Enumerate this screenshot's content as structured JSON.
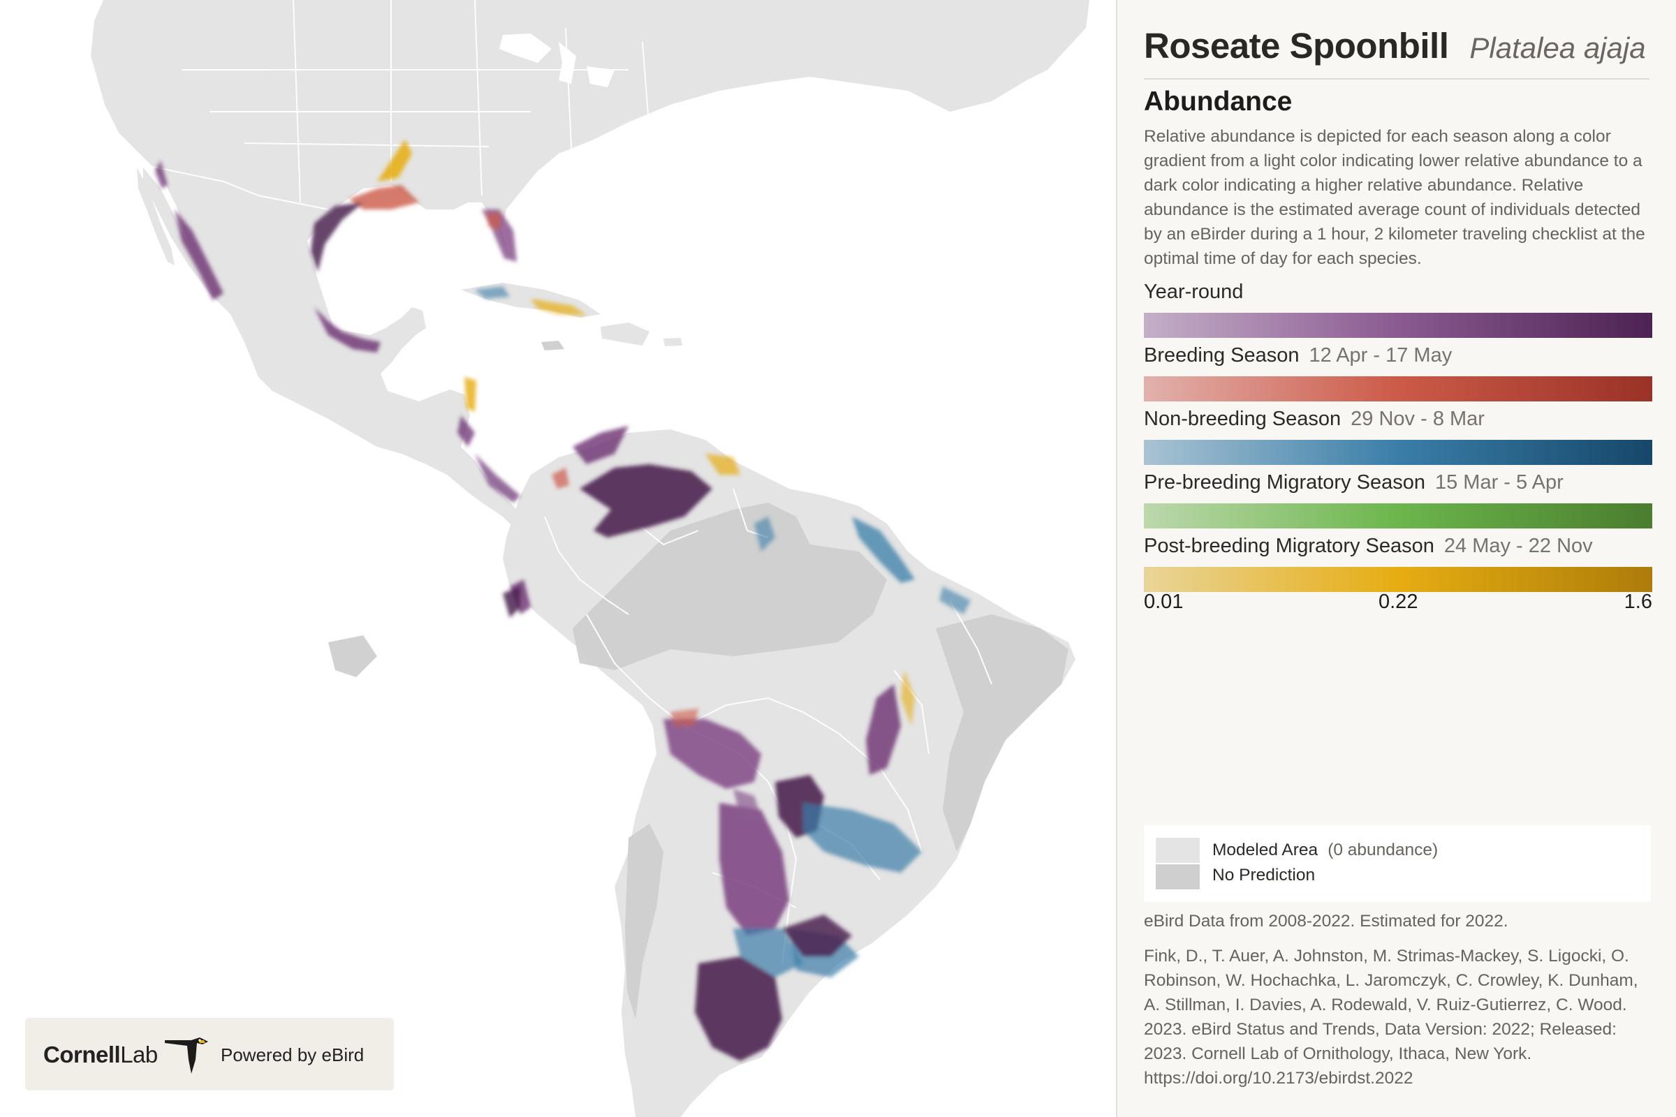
{
  "map": {
    "land_color": "#e4e4e4",
    "no_prediction_color": "#cfcfcf",
    "border_color": "#ffffff",
    "water_color": "#ffffff"
  },
  "panel": {
    "common_name": "Roseate Spoonbill",
    "scientific_name": "Platalea ajaja",
    "section_title": "Abundance",
    "description": "Relative abundance is depicted for each season along a color gradient from a light color indicating lower relative abundance to a dark color indicating a higher relative abundance. Relative abundance is the estimated average count of individuals detected by an eBirder during a 1 hour, 2 kilometer traveling checklist at the optimal time of day for each species."
  },
  "seasons": [
    {
      "label": "Year-round",
      "dates": "",
      "colors": [
        "#c4afc8",
        "#8a5a90",
        "#4c2352"
      ]
    },
    {
      "label": "Breeding Season",
      "dates": "12 Apr - 17 May",
      "colors": [
        "#e2b1ac",
        "#cc5a48",
        "#9a3227"
      ]
    },
    {
      "label": "Non-breeding Season",
      "dates": "29 Nov - 8 Mar",
      "colors": [
        "#a9c3d3",
        "#3a7ea8",
        "#16476a"
      ]
    },
    {
      "label": "Pre-breeding Migratory Season",
      "dates": "15 Mar - 5 Apr",
      "colors": [
        "#bcd8ac",
        "#6cb64c",
        "#4a7d2e"
      ]
    },
    {
      "label": "Post-breeding Migratory Season",
      "dates": "24 May - 22 Nov",
      "colors": [
        "#e9d59a",
        "#e6ad12",
        "#ad7c0a"
      ]
    }
  ],
  "scale_ticks": [
    "0.01",
    "0.22",
    "1.6"
  ],
  "legend": {
    "modeled_label": "Modeled Area",
    "modeled_note": "(0 abundance)",
    "no_prediction_label": "No Prediction"
  },
  "data_note": "eBird Data from 2008-2022. Estimated for 2022.",
  "citation": "Fink, D., T. Auer, A. Johnston, M. Strimas-Mackey, S. Ligocki, O. Robinson, W. Hochachka, L. Jaromczyk, C. Crowley, K. Dunham, A. Stillman, I. Davies, A. Rodewald, V. Ruiz-Gutierrez, C. Wood. 2023. eBird Status and Trends, Data Version: 2022; Released: 2023. Cornell Lab of Ornithology, Ithaca, New York. https://doi.org/10.2173/ebirdst.2022",
  "logo": {
    "cornell": "Cornell",
    "lab": "Lab",
    "powered": "Powered by eBird"
  }
}
